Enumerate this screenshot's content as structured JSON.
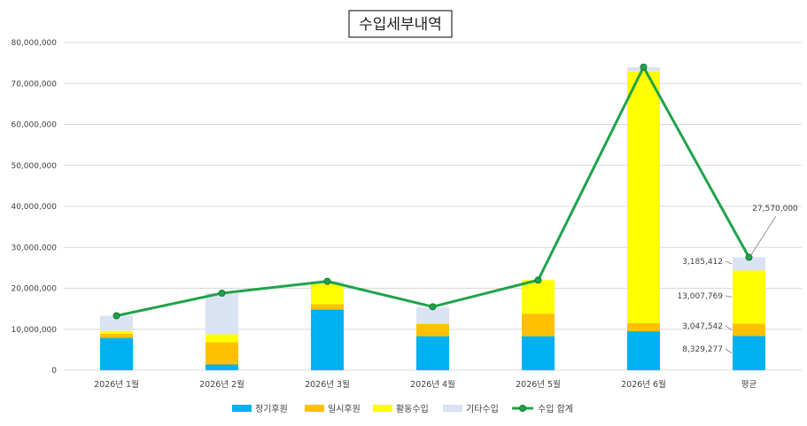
{
  "colors": {
    "정기후원": "#00b0f0",
    "일시후원": "#ffc000",
    "활동수입": "#ffff00",
    "기타수입": "#dae3f3",
    "수입 합계": "#1fa34a",
    "grid": "#d9d9d9"
  },
  "chart_data": {
    "type": "bar",
    "stacked": true,
    "title": "수입세부내역",
    "categories": [
      "2026년 1월",
      "2026년 2월",
      "2026년 3월",
      "2026년 4월",
      "2026년 5월",
      "2026년 6월",
      "평균"
    ],
    "yticks": [
      "0",
      "10,000,000",
      "20,000,000",
      "30,000,000",
      "40,000,000",
      "50,000,000",
      "60,000,000",
      "70,000,000",
      "80,000,000"
    ],
    "ylim": [
      0,
      80000000
    ],
    "grid": true,
    "legend_position": "bottom",
    "series": [
      {
        "name": "정기후원",
        "values": [
          7900000,
          1400000,
          14800000,
          8300000,
          8300000,
          9500000,
          8329277
        ]
      },
      {
        "name": "일시후원",
        "values": [
          1000000,
          5400000,
          1300000,
          3000000,
          5500000,
          2000000,
          3047542
        ]
      },
      {
        "name": "활동수입",
        "values": [
          700000,
          2000000,
          5000000,
          0,
          8200000,
          61500000,
          13007769
        ]
      },
      {
        "name": "기타수입",
        "values": [
          3700000,
          10000000,
          600000,
          4000000,
          0,
          1000000,
          3185412
        ]
      }
    ],
    "line_series": {
      "name": "수입 합계",
      "values": [
        13300000,
        18800000,
        21700000,
        15500000,
        22000000,
        74000000,
        27570000
      ]
    },
    "data_labels": [
      {
        "series": "정기후원",
        "category": "평균",
        "text": "8,329,277"
      },
      {
        "series": "일시후원",
        "category": "평균",
        "text": "3,047,542"
      },
      {
        "series": "활동수입",
        "category": "평균",
        "text": "13,007,769"
      },
      {
        "series": "기타수입",
        "category": "평균",
        "text": "3,185,412"
      },
      {
        "series": "수입 합계",
        "category": "평균",
        "text": "27,570,000"
      }
    ]
  }
}
